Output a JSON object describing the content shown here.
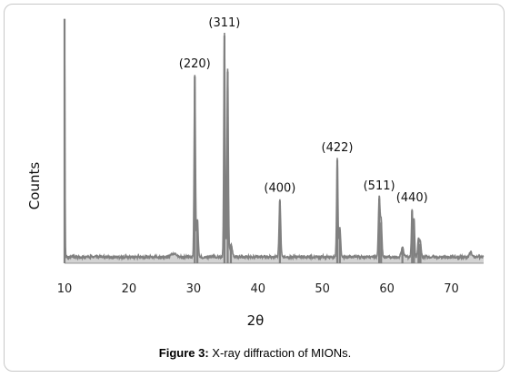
{
  "caption": {
    "label": "Figure 3:",
    "text": " X-ray diffraction of MIONs."
  },
  "chart_data": {
    "type": "line",
    "title": "",
    "xlabel": "2θ",
    "ylabel": "Counts",
    "xlim": [
      10,
      75
    ],
    "ylim": [
      0,
      100
    ],
    "xticks": [
      10,
      20,
      30,
      40,
      50,
      60,
      70
    ],
    "grid": false,
    "legend": "none",
    "y_tick_labels_shown": false,
    "line_color": "#808080",
    "baseline": 2,
    "peaks": [
      {
        "x": 10.0,
        "y": 100,
        "w": 0.06
      },
      {
        "x": 27.0,
        "y": 1.5,
        "w": 0.4
      },
      {
        "x": 30.2,
        "y": 76,
        "w": 0.1
      },
      {
        "x": 30.6,
        "y": 16,
        "w": 0.12
      },
      {
        "x": 34.8,
        "y": 93,
        "w": 0.1
      },
      {
        "x": 35.3,
        "y": 78,
        "w": 0.1
      },
      {
        "x": 35.8,
        "y": 5,
        "w": 0.2
      },
      {
        "x": 43.4,
        "y": 24,
        "w": 0.12
      },
      {
        "x": 52.3,
        "y": 41,
        "w": 0.1
      },
      {
        "x": 52.7,
        "y": 12,
        "w": 0.12
      },
      {
        "x": 58.8,
        "y": 25,
        "w": 0.12
      },
      {
        "x": 59.1,
        "y": 15,
        "w": 0.12
      },
      {
        "x": 62.4,
        "y": 4,
        "w": 0.18
      },
      {
        "x": 63.9,
        "y": 20,
        "w": 0.1
      },
      {
        "x": 64.2,
        "y": 16,
        "w": 0.1
      },
      {
        "x": 64.9,
        "y": 8,
        "w": 0.12
      },
      {
        "x": 65.2,
        "y": 6,
        "w": 0.12
      },
      {
        "x": 73.0,
        "y": 2,
        "w": 0.2
      }
    ],
    "annotations": [
      {
        "text": "(220)",
        "x": 30.2,
        "y": 76
      },
      {
        "text": "(311)",
        "x": 34.8,
        "y": 93
      },
      {
        "text": "(400)",
        "x": 43.4,
        "y": 24
      },
      {
        "text": "(422)",
        "x": 52.3,
        "y": 41
      },
      {
        "text": "(511)",
        "x": 58.8,
        "y": 25
      },
      {
        "text": "(440)",
        "x": 63.9,
        "y": 20
      }
    ]
  }
}
